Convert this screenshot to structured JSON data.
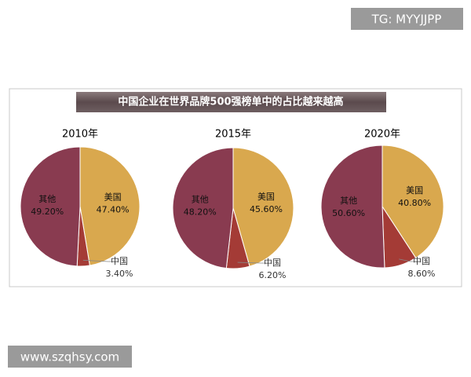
{
  "title": "中国企业在世界品牌500强榜单中的占比越来越高",
  "watermarks": [
    "TG: MYYJJPP",
    "www.szqhsy.com"
  ],
  "chart_data": [
    {
      "type": "pie",
      "title": "2010年",
      "categories": [
        "美国",
        "中国",
        "其他"
      ],
      "values": [
        47.4,
        3.4,
        49.2
      ],
      "value_labels": [
        "47.40%",
        "3.40%",
        "49.20%"
      ],
      "colors": [
        "#d9a84e",
        "#a43b36",
        "#893b50"
      ]
    },
    {
      "type": "pie",
      "title": "2015年",
      "categories": [
        "美国",
        "中国",
        "其他"
      ],
      "values": [
        45.6,
        6.2,
        48.2
      ],
      "value_labels": [
        "45.60%",
        "6.20%",
        "48.20%"
      ],
      "colors": [
        "#d9a84e",
        "#a43b36",
        "#893b50"
      ]
    },
    {
      "type": "pie",
      "title": "2020年",
      "categories": [
        "美国",
        "中国",
        "其他"
      ],
      "values": [
        40.8,
        8.6,
        50.6
      ],
      "value_labels": [
        "40.80%",
        "8.60%",
        "50.60%"
      ],
      "colors": [
        "#d9a84e",
        "#a43b36",
        "#893b50"
      ]
    }
  ]
}
